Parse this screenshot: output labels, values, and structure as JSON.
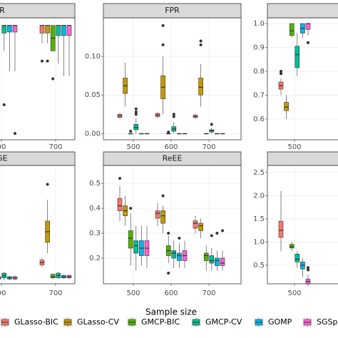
{
  "chart_data": {
    "type": "boxplot",
    "xlabel": "Sample size",
    "series": [
      {
        "name": "GLasso-BIC",
        "color": "#F8766D"
      },
      {
        "name": "GLasso-CV",
        "color": "#C49A00"
      },
      {
        "name": "GMCP-BIC",
        "color": "#53B400"
      },
      {
        "name": "GMCP-CV",
        "color": "#00C094"
      },
      {
        "name": "GOMP",
        "color": "#00B6EB"
      },
      {
        "name": "SGSplicin",
        "color": "#FB61D7"
      }
    ],
    "panels": [
      {
        "title": "R",
        "categories": [
          "00",
          "700"
        ],
        "ylim": [
          0.55,
          1.03
        ],
        "boxes": [
          [
            null,
            null,
            null,
            {
              "low": 0.9,
              "q1": 0.97,
              "median": 1.0,
              "q3": 1.0,
              "high": 1.0,
              "outliers": [
                0.688
              ]
            },
            {
              "low": 0.82,
              "q1": 0.974,
              "median": 1.0,
              "q3": 1.0,
              "high": 1.0,
              "outliers": []
            },
            {
              "low": 0.82,
              "q1": 0.974,
              "median": 1.0,
              "q3": 1.0,
              "high": 1.0,
              "outliers": [
                0.575
              ]
            }
          ],
          [
            {
              "low": 0.93,
              "q1": 0.97,
              "median": 1.0,
              "q3": 1.0,
              "high": 1.0,
              "outliers": [
                0.86
              ]
            },
            {
              "low": 0.93,
              "q1": 0.97,
              "median": 1.0,
              "q3": 1.0,
              "high": 1.0,
              "outliers": [
                0.86
              ]
            },
            {
              "low": 0.9,
              "q1": 0.9,
              "median": 0.95,
              "q3": 1.0,
              "high": 1.0,
              "outliers": [
                0.79
              ]
            },
            {
              "low": 0.85,
              "q1": 0.96,
              "median": 1.0,
              "q3": 1.0,
              "high": 1.0,
              "outliers": []
            },
            {
              "low": 0.8,
              "q1": 0.96,
              "median": 1.0,
              "q3": 1.0,
              "high": 1.0,
              "outliers": []
            },
            {
              "low": 0.8,
              "q1": 0.96,
              "median": 1.0,
              "q3": 1.0,
              "high": 1.0,
              "outliers": []
            }
          ]
        ]
      },
      {
        "title": "FPR",
        "categories": [
          "500",
          "600",
          "700"
        ],
        "ylim": [
          -0.008,
          0.15
        ],
        "yticks": [
          {
            "value": 0,
            "label": "0.00"
          },
          {
            "value": 0.05,
            "label": "0.05"
          },
          {
            "value": 0.1,
            "label": "0.10"
          }
        ],
        "boxes": [
          [
            {
              "low": 0.019,
              "q1": 0.021,
              "median": 0.023,
              "q3": 0.025,
              "high": 0.027,
              "outliers": []
            },
            {
              "low": 0.035,
              "q1": 0.052,
              "median": 0.062,
              "q3": 0.072,
              "high": 0.092,
              "outliers": []
            },
            {
              "low": 0,
              "q1": 0,
              "median": 0,
              "q3": 0,
              "high": 0,
              "outliers": [
                0.003
              ]
            },
            {
              "low": 0,
              "q1": 0.005,
              "median": 0.008,
              "q3": 0.012,
              "high": 0.02,
              "outliers": [
                0.025,
                0.028,
                0.032
              ]
            },
            {
              "low": 0,
              "q1": 0,
              "median": 0,
              "q3": 0,
              "high": 0,
              "outliers": []
            },
            {
              "low": 0,
              "q1": 0,
              "median": 0,
              "q3": 0,
              "high": 0,
              "outliers": []
            }
          ],
          [
            {
              "low": 0.02,
              "q1": 0.022,
              "median": 0.024,
              "q3": 0.026,
              "high": 0.028,
              "outliers": []
            },
            {
              "low": 0.025,
              "q1": 0.045,
              "median": 0.06,
              "q3": 0.075,
              "high": 0.1,
              "outliers": [
                0.115,
                0.14
              ]
            },
            {
              "low": 0,
              "q1": 0,
              "median": 0,
              "q3": 0,
              "high": 0,
              "outliers": [
                0.002
              ]
            },
            {
              "low": 0,
              "q1": 0.003,
              "median": 0.006,
              "q3": 0.009,
              "high": 0.015,
              "outliers": [
                0.022,
                0.025
              ]
            },
            {
              "low": 0,
              "q1": 0,
              "median": 0,
              "q3": 0,
              "high": 0,
              "outliers": []
            },
            {
              "low": 0,
              "q1": 0,
              "median": 0,
              "q3": 0,
              "high": 0,
              "outliers": []
            }
          ],
          [
            {
              "low": 0.019,
              "q1": 0.021,
              "median": 0.022,
              "q3": 0.024,
              "high": 0.026,
              "outliers": []
            },
            {
              "low": 0.035,
              "q1": 0.05,
              "median": 0.06,
              "q3": 0.072,
              "high": 0.09,
              "outliers": [
                0.115,
                0.12
              ]
            },
            {
              "low": 0,
              "q1": 0,
              "median": 0,
              "q3": 0,
              "high": 0,
              "outliers": []
            },
            {
              "low": 0,
              "q1": 0.002,
              "median": 0.004,
              "q3": 0.005,
              "high": 0.007,
              "outliers": [
                0.012
              ]
            },
            {
              "low": 0,
              "q1": 0,
              "median": 0,
              "q3": 0,
              "high": 0,
              "outliers": []
            },
            {
              "low": 0,
              "q1": 0,
              "median": 0,
              "q3": 0,
              "high": 0,
              "outliers": []
            }
          ]
        ]
      },
      {
        "categories": [
          "500"
        ],
        "ylim": [
          0.513,
          1.024
        ],
        "yticks": [
          0.6,
          0.7,
          0.8,
          0.9,
          {
            "value": 1,
            "label": "1.0"
          }
        ],
        "boxes": [
          [
            {
              "low": 0.7,
              "q1": 0.725,
              "median": 0.74,
              "q3": 0.755,
              "high": 0.77,
              "outliers": [
                0.79,
                0.8
              ]
            },
            {
              "low": 0.6,
              "q1": 0.635,
              "median": 0.65,
              "q3": 0.67,
              "high": 0.7,
              "outliers": []
            },
            {
              "low": 0.94,
              "q1": 0.95,
              "median": 0.97,
              "q3": 1.0,
              "high": 1.0,
              "outliers": []
            },
            {
              "low": 0.78,
              "q1": 0.815,
              "median": 0.87,
              "q3": 0.905,
              "high": 0.96,
              "outliers": []
            },
            {
              "low": 0.94,
              "q1": 0.96,
              "median": 0.98,
              "q3": 1.0,
              "high": 1.0,
              "outliers": []
            },
            {
              "low": 0.95,
              "q1": 0.975,
              "median": 1.0,
              "q3": 1.0,
              "high": 1.0,
              "outliers": [
                0.92
              ]
            }
          ]
        ]
      },
      {
        "title": "GE",
        "categories": [
          "00",
          "700"
        ],
        "ylim": [
          0,
          1
        ],
        "boxes": [
          [
            null,
            {
              "low": 0.04,
              "q1": 0.05,
              "median": 0.06,
              "q3": 0.07,
              "high": 0.08,
              "outliers": [
                0.24,
                0.25
              ]
            },
            {
              "low": 0.03,
              "q1": 0.04,
              "median": 0.05,
              "q3": 0.06,
              "high": 0.07,
              "outliers": []
            },
            {
              "low": 0.03,
              "q1": 0.05,
              "median": 0.07,
              "q3": 0.09,
              "high": 0.1,
              "outliers": []
            },
            {
              "low": 0.03,
              "q1": 0.04,
              "median": 0.05,
              "q3": 0.06,
              "high": 0.07,
              "outliers": []
            },
            {
              "low": 0.03,
              "q1": 0.04,
              "median": 0.05,
              "q3": 0.06,
              "high": 0.07,
              "outliers": []
            }
          ],
          [
            {
              "low": 0.14,
              "q1": 0.16,
              "median": 0.18,
              "q3": 0.2,
              "high": 0.22,
              "outliers": []
            },
            {
              "low": 0.26,
              "q1": 0.35,
              "median": 0.44,
              "q3": 0.53,
              "high": 0.71,
              "outliers": [
                0.84
              ]
            },
            {
              "low": 0.04,
              "q1": 0.05,
              "median": 0.06,
              "q3": 0.08,
              "high": 0.09,
              "outliers": []
            },
            {
              "low": 0.04,
              "q1": 0.05,
              "median": 0.07,
              "q3": 0.09,
              "high": 0.1,
              "outliers": []
            },
            {
              "low": 0.04,
              "q1": 0.05,
              "median": 0.06,
              "q3": 0.07,
              "high": 0.08,
              "outliers": []
            },
            {
              "low": 0.04,
              "q1": 0.05,
              "median": 0.06,
              "q3": 0.07,
              "high": 0.08,
              "outliers": []
            }
          ]
        ]
      },
      {
        "title": "ReEE",
        "categories": [
          "500",
          "600",
          "700"
        ],
        "ylim": [
          0.097,
          0.572
        ],
        "yticks": [
          0.2,
          0.3,
          0.4,
          0.5
        ],
        "boxes": [
          [
            {
              "low": 0.35,
              "q1": 0.39,
              "median": 0.41,
              "q3": 0.44,
              "high": 0.49,
              "outliers": [
                0.52
              ]
            },
            {
              "low": 0.33,
              "q1": 0.37,
              "median": 0.39,
              "q3": 0.41,
              "high": 0.45,
              "outliers": []
            },
            {
              "low": 0.17,
              "q1": 0.24,
              "median": 0.28,
              "q3": 0.31,
              "high": 0.38,
              "outliers": [
                0.4
              ]
            },
            {
              "low": 0.15,
              "q1": 0.22,
              "median": 0.25,
              "q3": 0.27,
              "high": 0.33,
              "outliers": []
            },
            {
              "low": 0.17,
              "q1": 0.21,
              "median": 0.24,
              "q3": 0.27,
              "high": 0.33,
              "outliers": []
            },
            {
              "low": 0.16,
              "q1": 0.21,
              "median": 0.24,
              "q3": 0.27,
              "high": 0.33,
              "outliers": []
            }
          ],
          [
            {
              "low": 0.33,
              "q1": 0.36,
              "median": 0.38,
              "q3": 0.39,
              "high": 0.42,
              "outliers": []
            },
            {
              "low": 0.3,
              "q1": 0.34,
              "median": 0.37,
              "q3": 0.39,
              "high": 0.41,
              "outliers": [
                0.45
              ]
            },
            {
              "low": 0.18,
              "q1": 0.21,
              "median": 0.23,
              "q3": 0.25,
              "high": 0.29,
              "outliers": [
                0.14,
                0.3
              ]
            },
            {
              "low": 0.16,
              "q1": 0.2,
              "median": 0.22,
              "q3": 0.23,
              "high": 0.27,
              "outliers": []
            },
            {
              "low": 0.16,
              "q1": 0.19,
              "median": 0.21,
              "q3": 0.22,
              "high": 0.26,
              "outliers": [
                0.28
              ]
            },
            {
              "low": 0.16,
              "q1": 0.19,
              "median": 0.21,
              "q3": 0.23,
              "high": 0.27,
              "outliers": []
            }
          ],
          [
            {
              "low": 0.3,
              "q1": 0.32,
              "median": 0.34,
              "q3": 0.35,
              "high": 0.37,
              "outliers": []
            },
            {
              "low": 0.28,
              "q1": 0.31,
              "median": 0.33,
              "q3": 0.34,
              "high": 0.36,
              "outliers": []
            },
            {
              "low": 0.15,
              "q1": 0.19,
              "median": 0.21,
              "q3": 0.22,
              "high": 0.25,
              "outliers": []
            },
            {
              "low": 0.15,
              "q1": 0.18,
              "median": 0.19,
              "q3": 0.21,
              "high": 0.24,
              "outliers": [
                0.29
              ]
            },
            {
              "low": 0.15,
              "q1": 0.17,
              "median": 0.19,
              "q3": 0.2,
              "high": 0.23,
              "outliers": [
                0.3
              ]
            },
            {
              "low": 0.15,
              "q1": 0.17,
              "median": 0.18,
              "q3": 0.2,
              "high": 0.23,
              "outliers": [
                0.31
              ]
            }
          ]
        ]
      },
      {
        "categories": [
          "500"
        ],
        "ylim": [
          0.1,
          2.65
        ],
        "yticks": [
          0.5,
          {
            "value": 1,
            "label": "1.0"
          },
          1.5,
          {
            "value": 2,
            "label": "2.0"
          },
          2.5
        ],
        "boxes": [
          [
            {
              "low": 0.8,
              "q1": 1.1,
              "median": 1.25,
              "q3": 1.45,
              "high": 2.1,
              "outliers": []
            },
            null,
            {
              "low": 0.8,
              "q1": 0.87,
              "median": 0.9,
              "q3": 0.95,
              "high": 1.0,
              "outliers": []
            },
            {
              "low": 0.45,
              "q1": 0.57,
              "median": 0.63,
              "q3": 0.74,
              "high": 0.8,
              "outliers": []
            },
            {
              "low": 0.25,
              "q1": 0.42,
              "median": 0.5,
              "q3": 0.57,
              "high": 0.65,
              "outliers": []
            },
            {
              "low": 0.05,
              "q1": 0.1,
              "median": 0.15,
              "q3": 0.2,
              "high": 0.3,
              "outliers": [
                0.4,
                0.45
              ]
            }
          ]
        ]
      }
    ]
  }
}
